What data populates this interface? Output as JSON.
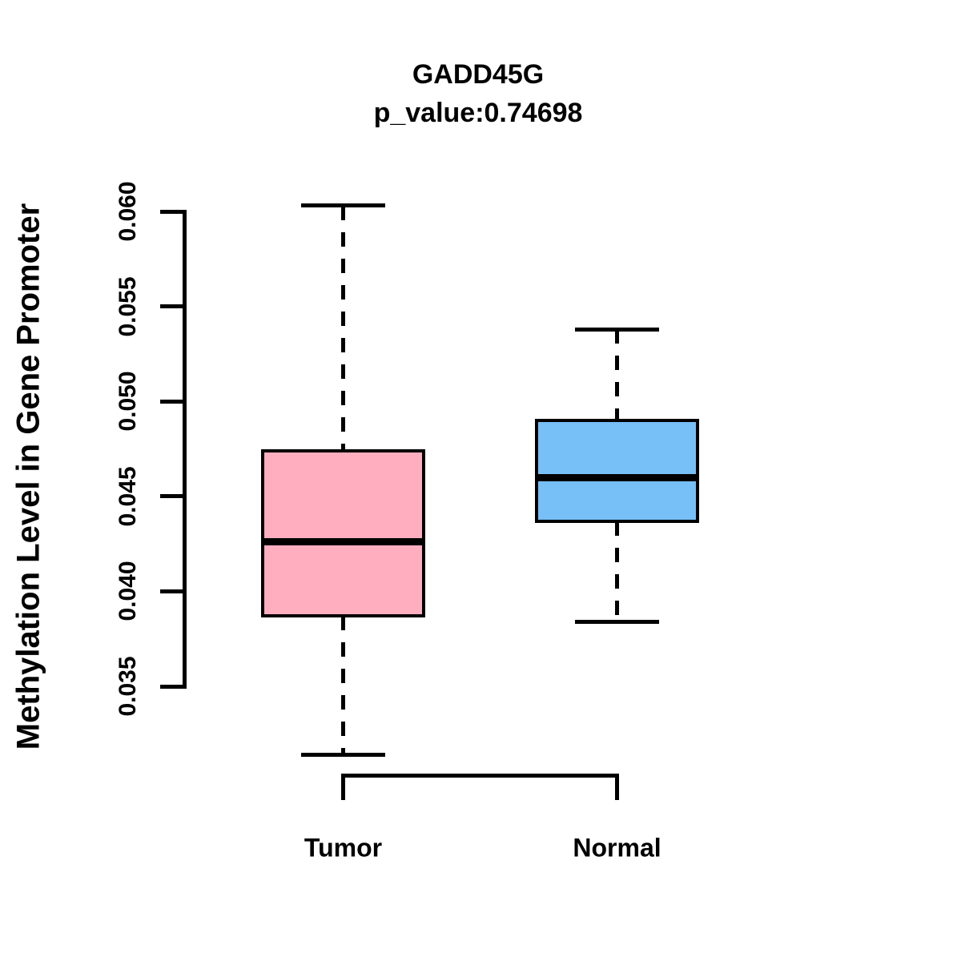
{
  "chart_data": {
    "type": "boxplot",
    "title": "GADD45G",
    "subtitle": "p_value:0.74698",
    "ylabel": "Methylation Level in Gene Promoter",
    "xlabel": "",
    "ylim": [
      0.035,
      0.06
    ],
    "yticks": [
      "0.035",
      "0.040",
      "0.045",
      "0.050",
      "0.055",
      "0.060"
    ],
    "grid": false,
    "legend": "none",
    "categories": [
      "Tumor",
      "Normal"
    ],
    "series": [
      {
        "name": "Tumor",
        "color": "#FFAEC0",
        "border_color": "#000000",
        "whisker_low": 0.0314,
        "q1": 0.0387,
        "median": 0.0426,
        "q3": 0.0474,
        "whisker_high": 0.0603
      },
      {
        "name": "Normal",
        "color": "#77BFF7",
        "border_color": "#000000",
        "whisker_low": 0.0384,
        "q1": 0.0437,
        "median": 0.046,
        "q3": 0.049,
        "whisker_high": 0.0538
      }
    ]
  }
}
